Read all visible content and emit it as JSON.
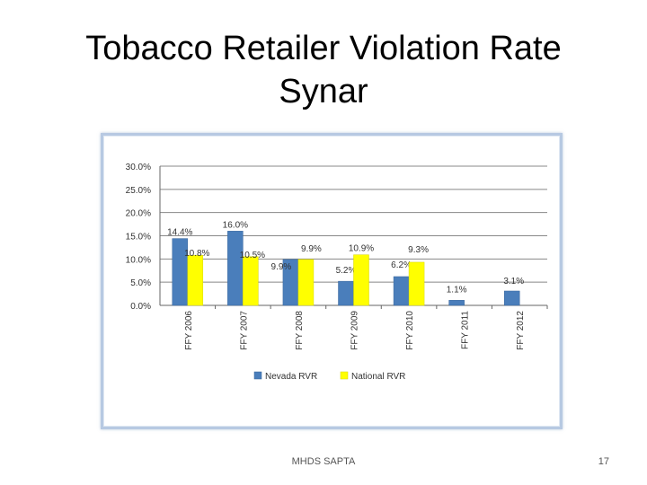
{
  "slide": {
    "title_line1": "Tobacco Retailer Violation Rate",
    "title_line2": "Synar",
    "footer_text": "MHDS SAPTA",
    "page_number": "17"
  },
  "chart_data": {
    "type": "bar",
    "categories": [
      "FFY 2006",
      "FFY 2007",
      "FFY 2008",
      "FFY 2009",
      "FFY 2010",
      "FFY 2011",
      "FFY 2012"
    ],
    "series": [
      {
        "name": "Nevada RVR",
        "color": "#4a7ebb",
        "values": [
          14.4,
          16.0,
          9.9,
          5.2,
          6.2,
          1.1,
          3.1
        ],
        "labels": [
          "14.4%",
          "16.0%",
          "9.9%",
          "5.2%",
          "6.2%",
          "1.1%",
          "3.1%"
        ]
      },
      {
        "name": "National RVR",
        "color": "#ffff00",
        "values": [
          10.8,
          10.5,
          9.9,
          10.9,
          9.3,
          null,
          null
        ],
        "labels": [
          "10.8%",
          "10.5%",
          "9.9%",
          "10.9%",
          "9.3%",
          null,
          null
        ]
      }
    ],
    "yticks": [
      "0.0%",
      "5.0%",
      "10.0%",
      "15.0%",
      "20.0%",
      "25.0%",
      "30.0%"
    ],
    "ylim": [
      0,
      30
    ],
    "grid": true,
    "legend": "bottom"
  }
}
